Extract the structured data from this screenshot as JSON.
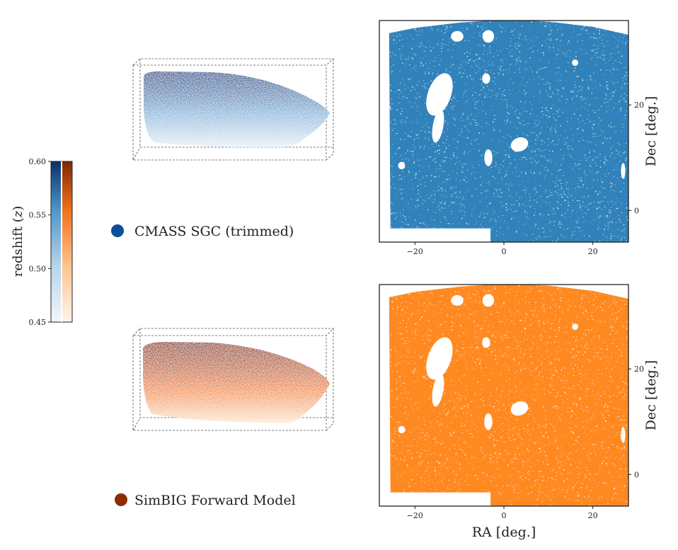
{
  "colorbar": {
    "label_prefix": "redshift",
    "label_var": "z",
    "range": [
      0.45,
      0.6
    ],
    "ticks": [
      "0.60",
      "0.55",
      "0.50",
      "0.45"
    ],
    "tick_values": [
      0.6,
      0.55,
      0.5,
      0.45
    ],
    "colormaps": [
      "Blues",
      "Oranges"
    ]
  },
  "legend": {
    "top_label": "CMASS SGC (trimmed)",
    "top_color": "#0b4f9c",
    "bottom_label": "SimBIG Forward Model",
    "bottom_color": "#8c2d04"
  },
  "chart_data": [
    {
      "type": "scatter",
      "series": [
        {
          "name": "CMASS SGC (trimmed)",
          "color": "#1f77b4"
        }
      ],
      "xlabel": "",
      "ylabel": "Dec [deg.]",
      "xticks": [
        -20,
        0,
        20
      ],
      "yticks": [
        0,
        20
      ],
      "xlim": [
        -28,
        28
      ],
      "ylim": [
        -6,
        36
      ],
      "x_tick_labels": [
        "−20",
        "0",
        "20"
      ],
      "y_tick_labels": [
        "0",
        "20"
      ]
    },
    {
      "type": "scatter",
      "series": [
        {
          "name": "SimBIG Forward Model",
          "color": "#ff7f0e"
        }
      ],
      "xlabel": "RA [deg.]",
      "ylabel": "Dec [deg.]",
      "xticks": [
        -20,
        0,
        20
      ],
      "yticks": [
        0,
        20
      ],
      "xlim": [
        -28,
        28
      ],
      "ylim": [
        -6,
        36
      ],
      "x_tick_labels": [
        "−20",
        "0",
        "20"
      ],
      "y_tick_labels": [
        "0",
        "20"
      ]
    }
  ]
}
